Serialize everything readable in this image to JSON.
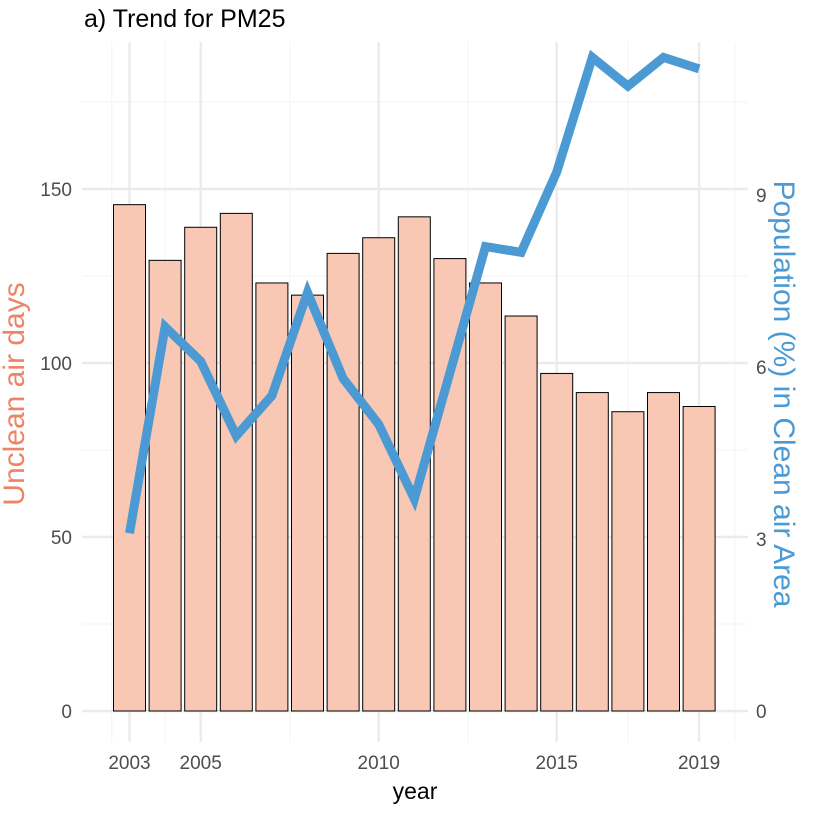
{
  "chart_data": {
    "type": "bar",
    "title": "a) Trend for PM25",
    "xlabel": "year",
    "ylabel": "Unclean air days",
    "y2label": "Population (%) in Clean air Area",
    "x": [
      2003,
      2004,
      2005,
      2006,
      2007,
      2008,
      2009,
      2010,
      2011,
      2012,
      2013,
      2014,
      2015,
      2016,
      2017,
      2018,
      2019
    ],
    "x_tick_labels": [
      "2003",
      "2005",
      "2010",
      "2015",
      "2019"
    ],
    "x_ticks": [
      2003,
      2005,
      2010,
      2015,
      2019
    ],
    "y_ticks": [
      "0",
      "50",
      "100",
      "150"
    ],
    "y_tick_values": [
      0,
      50,
      100,
      150
    ],
    "y2_ticks": [
      "0",
      "3",
      "6",
      "9"
    ],
    "y2_tick_values": [
      0,
      3,
      6,
      9
    ],
    "ylim": [
      0,
      175
    ],
    "y2lim": [
      0,
      10.5
    ],
    "grid": true,
    "series": [
      {
        "name": "Unclean air days",
        "type": "bar",
        "axis": "left",
        "color": "#f8c8b5",
        "values": [
          145.5,
          129.5,
          139,
          143,
          123,
          119.5,
          131.5,
          136,
          142,
          130,
          123,
          113.5,
          97,
          91.5,
          86,
          91.5,
          87.5
        ]
      },
      {
        "name": "Population (%) in Clean air Area",
        "type": "line",
        "axis": "right",
        "color": "#4b9ad4",
        "values": [
          3.1,
          6.7,
          6.1,
          4.8,
          5.5,
          7.3,
          5.8,
          5.0,
          3.7,
          5.9,
          8.1,
          8.0,
          9.4,
          11.4,
          10.9,
          11.4,
          11.2
        ]
      }
    ]
  },
  "colors": {
    "left_axis_label": "#ee8466",
    "right_axis_label": "#4b9ad4",
    "bar_fill": "#f8c8b5",
    "line": "#4b9ad4",
    "grid_major": "#ebebeb",
    "grid_minor": "#f5f5f5"
  }
}
